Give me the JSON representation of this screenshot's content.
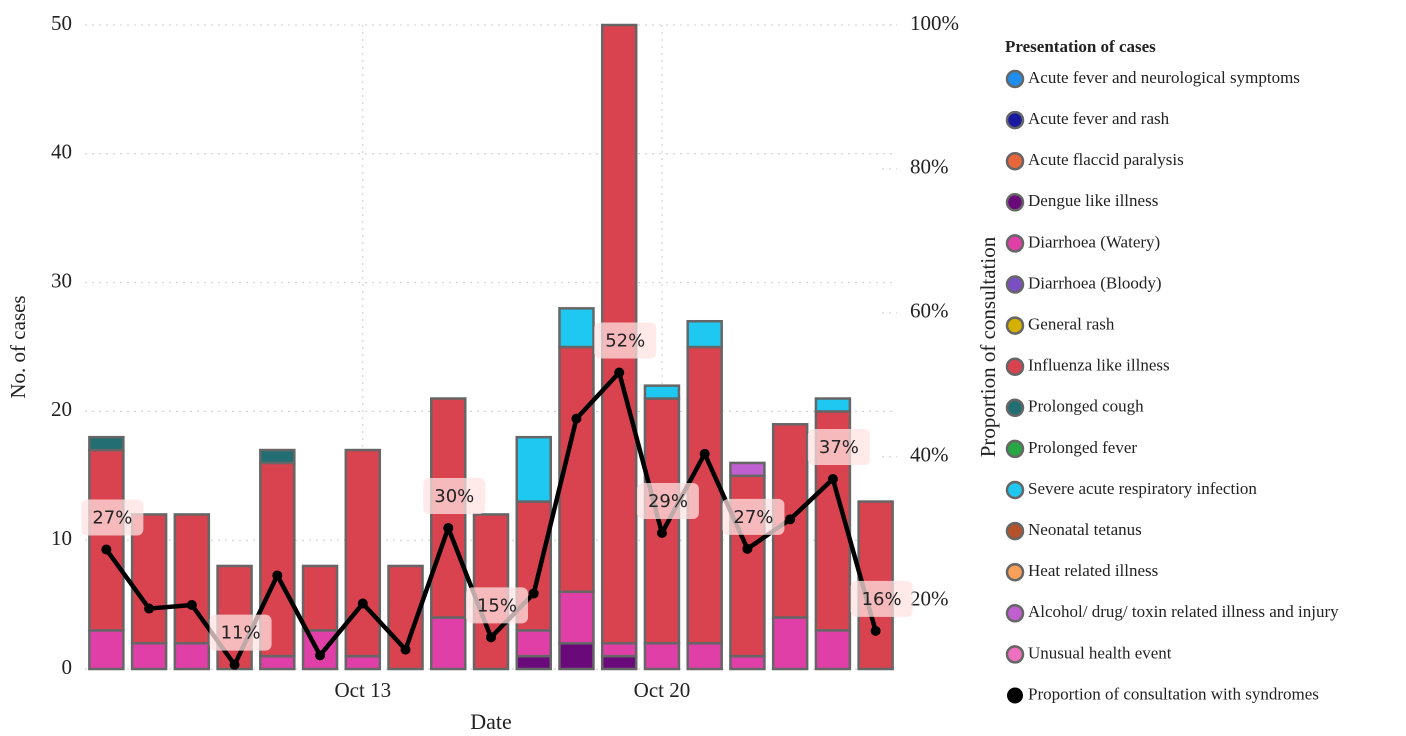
{
  "chart_data": {
    "type": "bar",
    "stacked": true,
    "xlabel": "Date",
    "ylabel": "No. of cases",
    "y2label": "Proportion of consultation",
    "legend_title": "Presentation of cases",
    "legend": "right",
    "grid": true,
    "categories": [
      null,
      null,
      null,
      null,
      null,
      null,
      "Oct 13",
      null,
      null,
      null,
      null,
      null,
      null,
      "Oct 20",
      null,
      null,
      null,
      null,
      null
    ],
    "ylim": [
      0,
      50
    ],
    "yticks": [
      0,
      10,
      20,
      30,
      40,
      50
    ],
    "y2lim": [
      10.5,
      100
    ],
    "y2ticks": [
      {
        "value": 20,
        "label": "20%"
      },
      {
        "value": 40,
        "label": "40%"
      },
      {
        "value": 60,
        "label": "60%"
      },
      {
        "value": 80,
        "label": "80%"
      },
      {
        "value": 100,
        "label": "100%"
      }
    ],
    "series": [
      {
        "name": "Acute fever and neurological symptoms",
        "color": "#1f8ef1",
        "values": [
          0,
          0,
          0,
          0,
          0,
          0,
          0,
          0,
          0,
          0,
          0,
          0,
          0,
          0,
          0,
          0,
          0,
          0,
          0
        ]
      },
      {
        "name": "Acute fever and rash",
        "color": "#1a1aa0",
        "values": [
          0,
          0,
          0,
          0,
          0,
          0,
          0,
          0,
          0,
          0,
          0,
          0,
          0,
          0,
          0,
          0,
          0,
          0,
          0
        ]
      },
      {
        "name": "Acute flaccid paralysis",
        "color": "#e8673a",
        "values": [
          0,
          0,
          0,
          0,
          0,
          0,
          0,
          0,
          0,
          0,
          0,
          0,
          0,
          0,
          0,
          0,
          0,
          0,
          0
        ]
      },
      {
        "name": "Dengue like illness",
        "color": "#6a0a7a",
        "values": [
          0,
          0,
          0,
          0,
          0,
          0,
          0,
          0,
          0,
          0,
          1,
          2,
          1,
          0,
          0,
          0,
          0,
          0,
          0
        ]
      },
      {
        "name": "Diarrhoea (Watery)",
        "color": "#e03fa8",
        "values": [
          3,
          2,
          2,
          0,
          1,
          3,
          1,
          0,
          4,
          0,
          2,
          4,
          1,
          2,
          2,
          1,
          4,
          3,
          0
        ]
      },
      {
        "name": "Diarrhoea (Bloody)",
        "color": "#7b4fc4",
        "values": [
          0,
          0,
          0,
          0,
          0,
          0,
          0,
          0,
          0,
          0,
          0,
          0,
          0,
          0,
          0,
          0,
          0,
          0,
          0
        ]
      },
      {
        "name": "General rash",
        "color": "#d4b000",
        "values": [
          0,
          0,
          0,
          0,
          0,
          0,
          0,
          0,
          0,
          0,
          0,
          0,
          0,
          0,
          0,
          0,
          0,
          0,
          0
        ]
      },
      {
        "name": "Influenza like illness",
        "color": "#d9434f",
        "values": [
          14,
          10,
          10,
          8,
          15,
          5,
          16,
          8,
          17,
          12,
          10,
          19,
          48,
          19,
          23,
          14,
          15,
          17,
          13
        ]
      },
      {
        "name": "Prolonged cough",
        "color": "#226e72",
        "values": [
          1,
          0,
          0,
          0,
          1,
          0,
          0,
          0,
          0,
          0,
          0,
          0,
          0,
          0,
          0,
          0,
          0,
          0,
          0
        ]
      },
      {
        "name": "Prolonged fever",
        "color": "#28a745",
        "values": [
          0,
          0,
          0,
          0,
          0,
          0,
          0,
          0,
          0,
          0,
          0,
          0,
          0,
          0,
          0,
          0,
          0,
          0,
          0
        ]
      },
      {
        "name": "Severe acute respiratory infection",
        "color": "#1ec8f0",
        "values": [
          0,
          0,
          0,
          0,
          0,
          0,
          0,
          0,
          0,
          0,
          5,
          3,
          0,
          1,
          2,
          0,
          0,
          1,
          0
        ]
      },
      {
        "name": "Neonatal tetanus",
        "color": "#b5522a",
        "values": [
          0,
          0,
          0,
          0,
          0,
          0,
          0,
          0,
          0,
          0,
          0,
          0,
          0,
          0,
          0,
          0,
          0,
          0,
          0
        ]
      },
      {
        "name": "Heat related illness",
        "color": "#f6a05a",
        "values": [
          0,
          0,
          0,
          0,
          0,
          0,
          0,
          0,
          0,
          0,
          0,
          0,
          0,
          0,
          0,
          0,
          0,
          0,
          0
        ]
      },
      {
        "name": "Alcohol/ drug/ toxin related illness and injury",
        "color": "#c060d0",
        "values": [
          0,
          0,
          0,
          0,
          0,
          0,
          0,
          0,
          0,
          0,
          0,
          0,
          0,
          0,
          0,
          1,
          0,
          0,
          0
        ]
      },
      {
        "name": "Unusual health event",
        "color": "#f070c0",
        "values": [
          0,
          0,
          0,
          0,
          0,
          0,
          0,
          0,
          0,
          0,
          0,
          0,
          0,
          0,
          0,
          0,
          0,
          0,
          0
        ]
      },
      {
        "name": "Proportion of consultation with syndromes",
        "color": "#000000",
        "type": "line",
        "axis": "y2",
        "values": [
          27.1,
          18.9,
          19.4,
          11.1,
          23.5,
          12.4,
          19.6,
          13.2,
          30.1,
          14.9,
          21.0,
          45.3,
          51.7,
          29.4,
          40.4,
          27.2,
          31.3,
          36.9,
          15.8
        ],
        "value_labels": [
          "27%",
          null,
          null,
          "11%",
          null,
          null,
          null,
          null,
          "30%",
          "15%",
          null,
          null,
          "52%",
          "29%",
          null,
          "27%",
          null,
          "37%",
          "16%"
        ]
      }
    ]
  }
}
